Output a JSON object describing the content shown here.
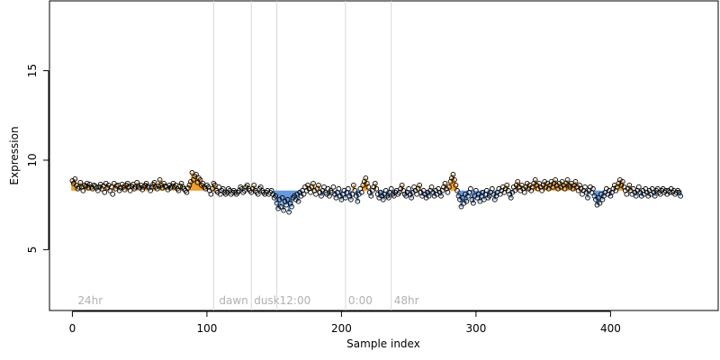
{
  "chart_data": {
    "type": "scatter",
    "xlabel": "Sample index",
    "ylabel": "Expression",
    "xlim": [
      -17,
      480
    ],
    "ylim": [
      1.6,
      18.9
    ],
    "x_ticks": [
      0,
      100,
      200,
      300,
      400
    ],
    "y_ticks": [
      5,
      10,
      15
    ],
    "grid": false,
    "baseline": 8.3,
    "colors": {
      "above": "#f0a030",
      "below": "#6699dd",
      "point_stroke": "#000000",
      "divider": "#d8d8d8",
      "annotation": "#b0b0b0"
    },
    "annotations": [
      {
        "x": 2,
        "label": "24hr"
      },
      {
        "x": 107,
        "label": "dawn"
      },
      {
        "x": 133,
        "label": "dusk"
      },
      {
        "x": 152,
        "label": "12:00"
      },
      {
        "x": 203,
        "label": "0:00"
      },
      {
        "x": 237,
        "label": "48hr"
      }
    ],
    "dividers": [
      105,
      133,
      152,
      203,
      237
    ],
    "values": [
      8.85,
      8.7,
      8.95,
      8.6,
      8.4,
      8.5,
      8.75,
      8.5,
      8.3,
      8.6,
      8.55,
      8.7,
      8.45,
      8.65,
      8.5,
      8.4,
      8.6,
      8.55,
      8.45,
      8.3,
      8.5,
      8.65,
      8.4,
      8.55,
      8.2,
      8.7,
      8.45,
      8.6,
      8.3,
      8.5,
      8.1,
      8.7,
      8.4,
      8.55,
      8.6,
      8.3,
      8.45,
      8.65,
      8.5,
      8.35,
      8.6,
      8.7,
      8.5,
      8.3,
      8.55,
      8.65,
      8.4,
      8.5,
      8.75,
      8.55,
      8.45,
      8.6,
      8.35,
      8.5,
      8.6,
      8.7,
      8.55,
      8.45,
      8.3,
      8.5,
      8.65,
      8.75,
      8.5,
      8.4,
      8.55,
      8.9,
      8.6,
      8.45,
      8.7,
      8.55,
      8.5,
      8.35,
      8.6,
      8.45,
      8.55,
      8.7,
      8.5,
      8.6,
      8.4,
      8.3,
      8.55,
      8.7,
      8.5,
      8.4,
      8.3,
      8.2,
      8.45,
      8.6,
      8.8,
      9.3,
      8.9,
      9.1,
      9.2,
      8.75,
      9.0,
      8.9,
      8.6,
      8.7,
      8.5,
      8.4,
      8.6,
      8.5,
      8.3,
      8.1,
      8.4,
      8.7,
      8.6,
      8.3,
      8.2,
      8.5,
      8.1,
      8.3,
      8.4,
      8.2,
      8.1,
      8.2,
      8.4,
      8.3,
      8.1,
      8.2,
      8.3,
      8.2,
      8.1,
      8.2,
      8.3,
      8.5,
      8.4,
      8.2,
      8.3,
      8.5,
      8.6,
      8.4,
      8.3,
      8.2,
      8.4,
      8.6,
      8.3,
      8.2,
      8.1,
      8.4,
      8.5,
      8.3,
      8.2,
      8.1,
      8.2,
      8.3,
      8.1,
      8.2,
      8.3,
      8.1,
      7.9,
      8.0,
      7.6,
      7.3,
      7.8,
      7.4,
      7.9,
      7.2,
      7.7,
      7.5,
      7.8,
      7.1,
      7.6,
      7.4,
      7.9,
      8.0,
      7.8,
      8.1,
      7.7,
      8.2,
      8.0,
      8.3,
      8.1,
      8.5,
      8.3,
      8.6,
      8.4,
      8.2,
      8.5,
      8.7,
      8.3,
      8.1,
      8.4,
      8.6,
      8.2,
      8.0,
      8.3,
      8.5,
      8.2,
      8.1,
      8.4,
      8.0,
      8.3,
      8.2,
      8.5,
      8.1,
      7.9,
      8.2,
      8.4,
      8.0,
      7.8,
      8.1,
      8.3,
      7.9,
      8.2,
      8.4,
      8.0,
      7.8,
      8.1,
      8.6,
      8.3,
      8.0,
      7.7,
      8.1,
      8.4,
      8.2,
      8.6,
      8.8,
      9.0,
      8.7,
      8.5,
      8.2,
      8.0,
      8.3,
      8.5,
      8.7,
      8.4,
      8.1,
      7.9,
      8.2,
      8.0,
      7.8,
      8.1,
      8.3,
      8.0,
      7.9,
      8.2,
      8.4,
      8.1,
      8.0,
      8.2,
      8.3,
      8.1,
      8.2,
      8.4,
      8.6,
      8.3,
      8.1,
      8.0,
      8.2,
      8.4,
      8.1,
      7.9,
      8.2,
      8.5,
      8.3,
      8.1,
      8.4,
      8.6,
      8.2,
      8.0,
      8.3,
      8.1,
      7.9,
      8.2,
      8.0,
      8.3,
      8.5,
      8.2,
      8.0,
      8.3,
      8.1,
      8.4,
      8.2,
      8.0,
      8.3,
      8.5,
      8.7,
      8.4,
      8.2,
      8.5,
      8.8,
      9.0,
      9.2,
      8.9,
      8.6,
      8.3,
      8.0,
      7.8,
      7.4,
      7.9,
      7.6,
      8.1,
      7.7,
      8.0,
      8.2,
      8.4,
      7.8,
      7.6,
      8.0,
      8.3,
      7.9,
      8.1,
      7.7,
      8.0,
      8.2,
      7.8,
      8.1,
      8.3,
      7.9,
      8.0,
      8.2,
      8.4,
      8.1,
      7.8,
      8.0,
      8.2,
      8.4,
      8.1,
      8.3,
      8.5,
      8.2,
      8.4,
      8.6,
      8.3,
      8.1,
      7.9,
      8.2,
      8.5,
      8.3,
      8.6,
      8.8,
      8.5,
      8.3,
      8.6,
      8.4,
      8.2,
      8.5,
      8.7,
      8.4,
      8.6,
      8.3,
      8.5,
      8.7,
      8.9,
      8.6,
      8.4,
      8.7,
      8.5,
      8.3,
      8.6,
      8.8,
      8.5,
      8.7,
      8.4,
      8.6,
      8.8,
      8.5,
      8.7,
      8.9,
      8.6,
      8.4,
      8.7,
      8.5,
      8.8,
      8.6,
      8.4,
      8.7,
      8.9,
      8.6,
      8.5,
      8.7,
      8.4,
      8.6,
      8.8,
      8.5,
      8.3,
      8.6,
      8.4,
      8.1,
      8.3,
      8.5,
      8.2,
      7.9,
      8.3,
      8.5,
      8.2,
      8.4,
      8.0,
      7.8,
      7.5,
      7.9,
      7.6,
      8.1,
      7.8,
      8.0,
      8.2,
      8.4,
      8.1,
      8.3,
      8.0,
      8.2,
      8.4,
      8.6,
      8.3,
      8.5,
      8.7,
      8.9,
      8.6,
      8.8,
      8.5,
      8.3,
      8.1,
      8.4,
      8.6,
      8.3,
      8.1,
      8.4,
      8.2,
      8.0,
      8.3,
      8.5,
      8.2,
      8.0,
      8.3,
      8.1,
      8.4,
      8.2,
      8.0,
      8.3,
      8.1,
      8.4,
      8.2,
      8.0,
      8.3,
      8.4,
      8.2,
      8.1,
      8.3,
      8.4,
      8.2,
      8.3,
      8.1,
      8.3,
      8.2,
      8.4,
      8.2,
      8.3,
      8.1,
      8.2,
      8.3,
      8.2,
      8.0
    ]
  }
}
